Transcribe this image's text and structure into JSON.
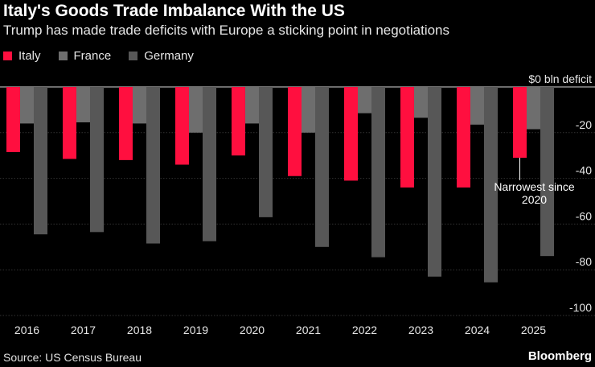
{
  "chart_data": {
    "type": "bar",
    "title": "Italy's Goods Trade Imbalance With the US",
    "subtitle": "Trump has made trade deficits with Europe a sticking point in negotiations",
    "categories": [
      "2016",
      "2017",
      "2018",
      "2019",
      "2020",
      "2021",
      "2022",
      "2023",
      "2024",
      "2025"
    ],
    "series": [
      {
        "name": "Italy",
        "color": "#ff0f3f",
        "values": [
          -28.5,
          -31.5,
          -32,
          -34,
          -30,
          -39,
          -41,
          -44,
          -44,
          -31
        ]
      },
      {
        "name": "France",
        "color": "#6e6e6e",
        "values": [
          -16,
          -15.5,
          -16,
          -20,
          -16,
          -20,
          -11.5,
          -13.5,
          -16.5,
          -18.5
        ]
      },
      {
        "name": "Germany",
        "color": "#575757",
        "values": [
          -64.5,
          -63.5,
          -68.5,
          -67.5,
          -57,
          -70,
          -74.5,
          -83,
          -85.5,
          -74
        ]
      }
    ],
    "y_ticks": [
      {
        "value": 0,
        "label": "$0 bln deficit"
      },
      {
        "value": -20,
        "label": "-20"
      },
      {
        "value": -40,
        "label": "-40"
      },
      {
        "value": -60,
        "label": "-60"
      },
      {
        "value": -80,
        "label": "-80"
      },
      {
        "value": -100,
        "label": "-100"
      }
    ],
    "ylim": [
      -100,
      0
    ],
    "xlabel": "",
    "ylabel": "",
    "annotation": {
      "series": "Italy",
      "category": "2025",
      "lines": [
        "Narrowest since",
        "2020"
      ]
    },
    "grid": true,
    "legend_position": "top-left"
  },
  "footer": {
    "source": "Source: US Census Bureau",
    "brand": "Bloomberg"
  }
}
